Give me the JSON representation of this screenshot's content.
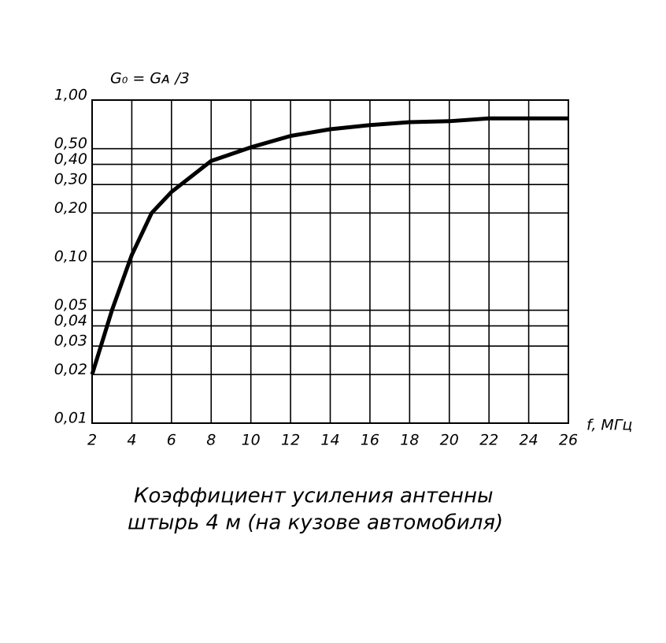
{
  "chart_data": {
    "type": "line",
    "y_label": "G₀ = Gᴀ /3",
    "x_label": "f, МГц",
    "caption": [
      "Коэффициент усиления антенны",
      "штырь 4 м (на кузове автомобиля)"
    ],
    "x": [
      2,
      3,
      4,
      5,
      6,
      8,
      10,
      12,
      14,
      16,
      18,
      20,
      22,
      24,
      26
    ],
    "series": [
      {
        "color": "#000000",
        "values": [
          0.02,
          0.05,
          0.11,
          0.2,
          0.27,
          0.42,
          0.51,
          0.6,
          0.66,
          0.7,
          0.73,
          0.74,
          0.77,
          0.77,
          0.77
        ]
      }
    ],
    "xlim": [
      2,
      26
    ],
    "xticks": [
      2,
      4,
      6,
      8,
      10,
      12,
      14,
      16,
      18,
      20,
      22,
      24,
      26
    ],
    "ylim": [
      0.01,
      1
    ],
    "log_y": true,
    "yticks": [
      {
        "value": 0.01,
        "label": "0,01"
      },
      {
        "value": 0.02,
        "label": "0,02"
      },
      {
        "value": 0.03,
        "label": "0,03"
      },
      {
        "value": 0.04,
        "label": "0,04"
      },
      {
        "value": 0.05,
        "label": "0,05"
      },
      {
        "value": 0.1,
        "label": "0,10"
      },
      {
        "value": 0.2,
        "label": "0,20"
      },
      {
        "value": 0.3,
        "label": "0,30"
      },
      {
        "value": 0.4,
        "label": "0,40"
      },
      {
        "value": 0.5,
        "label": "0,50"
      },
      {
        "value": 1,
        "label": "1,00"
      }
    ],
    "grid": true
  }
}
